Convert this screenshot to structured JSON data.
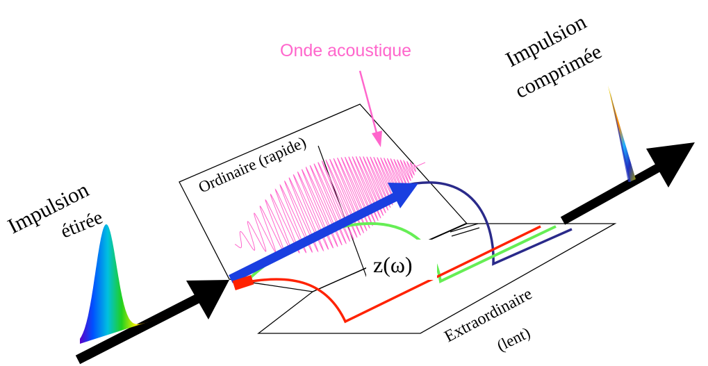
{
  "labels": {
    "onde_acoustique": "Onde acoustique",
    "impulsion_comprimee_1": "Impulsion",
    "impulsion_comprimee_2": "comprimée",
    "ordinaire": "Ordinaire (rapide)",
    "impulsion_etiree_1": "Impulsion",
    "impulsion_etiree_2": "étirée",
    "z_omega": "z(ω)",
    "extraordinaire": "Extraordinaire",
    "lent": "(lent)"
  },
  "colors": {
    "acoustic_wave": "#ff66cc",
    "ordinary_beam": "#1a3fe0",
    "red_path": "#ff2200",
    "green_path": "#66ee55",
    "blue_path": "#2a2a8a",
    "arrow": "#000000"
  }
}
